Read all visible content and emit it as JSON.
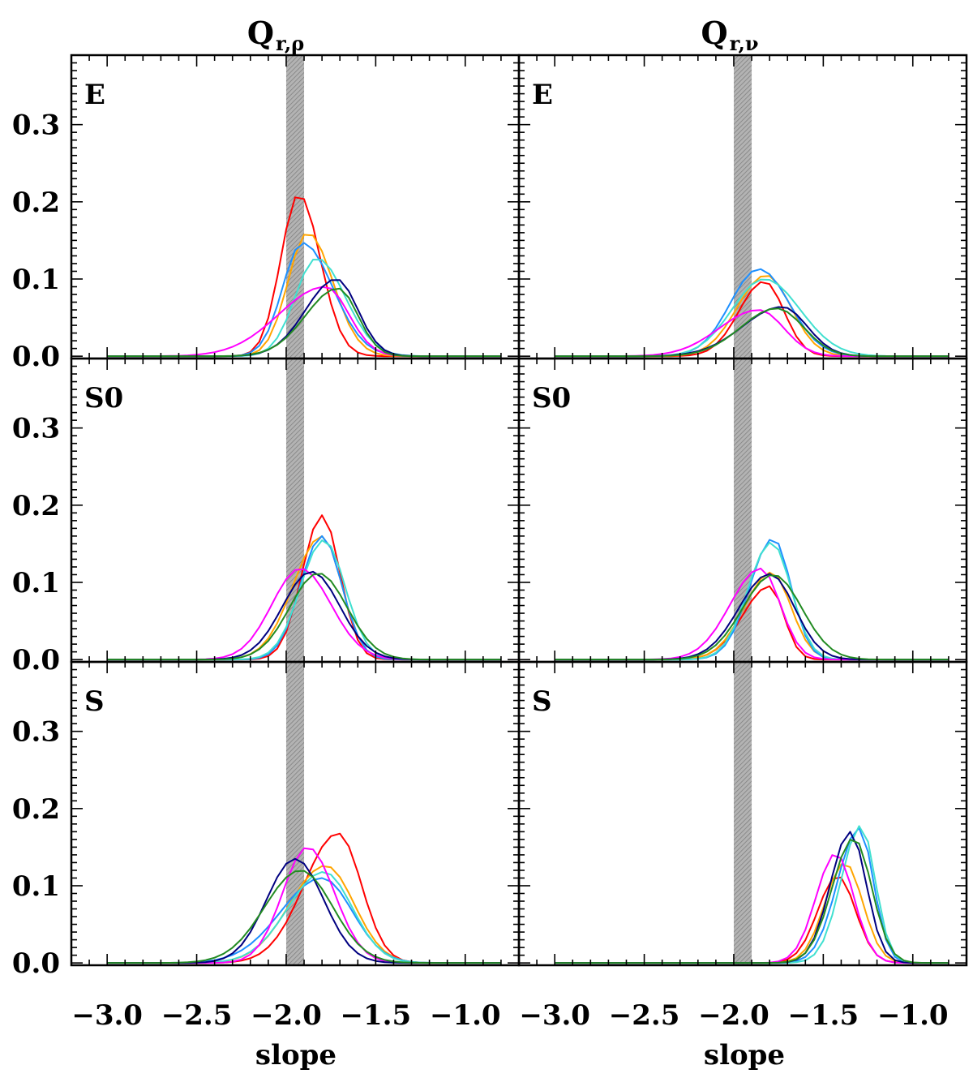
{
  "figure": {
    "columns": [
      {
        "title_main": "Q",
        "title_sub": "r,ρ"
      },
      {
        "title_main": "Q",
        "title_sub": "r,ν"
      }
    ],
    "rows": [
      "E",
      "S0",
      "S"
    ],
    "xlabel": "slope",
    "x_tick_labels": [
      "−3.0",
      "−2.5",
      "−2.0",
      "−1.5",
      "−1.0"
    ],
    "y_tick_labels": [
      "0.0",
      "0.1",
      "0.2",
      "0.3"
    ]
  },
  "chart_data": {
    "type": "line",
    "xlim": [
      -3.2,
      -0.7
    ],
    "ylim": [
      -0.003,
      0.39
    ],
    "x_ticks": [
      -3.0,
      -2.5,
      -2.0,
      -1.5,
      -1.0
    ],
    "y_ticks": [
      0.0,
      0.1,
      0.2,
      0.3
    ],
    "shaded_band": {
      "x": [
        -2.0,
        -1.9
      ],
      "color": "#a6a6a6"
    },
    "colors": {
      "red": "#ff0000",
      "orange": "#ffa500",
      "dodgerblue": "#1e90ff",
      "turquoise": "#40e0d0",
      "magenta": "#ff00ff",
      "navy": "#000080",
      "green": "#228b22"
    },
    "x": [
      -3.0,
      -2.95,
      -2.9,
      -2.85,
      -2.8,
      -2.75,
      -2.7,
      -2.65,
      -2.6,
      -2.55,
      -2.5,
      -2.45,
      -2.4,
      -2.35,
      -2.3,
      -2.25,
      -2.2,
      -2.15,
      -2.1,
      -2.05,
      -2.0,
      -1.95,
      -1.9,
      -1.85,
      -1.8,
      -1.75,
      -1.7,
      -1.65,
      -1.6,
      -1.55,
      -1.5,
      -1.45,
      -1.4,
      -1.35,
      -1.3,
      -1.25,
      -1.2,
      -1.15,
      -1.1,
      -1.05,
      -1.0,
      -0.95,
      -0.9,
      -0.85,
      -0.8
    ],
    "panels": [
      {
        "row": "E",
        "column": "Q_r,rho",
        "series": [
          {
            "color": "#ff0000",
            "peak_x": -1.93,
            "peak_y": 0.21,
            "width_left": 0.1,
            "width_right": 0.12
          },
          {
            "color": "#ffa500",
            "peak_x": -1.88,
            "peak_y": 0.16,
            "width_left": 0.11,
            "width_right": 0.14
          },
          {
            "color": "#1e90ff",
            "peak_x": -1.91,
            "peak_y": 0.147,
            "width_left": 0.11,
            "width_right": 0.17
          },
          {
            "color": "#40e0d0",
            "peak_x": -1.83,
            "peak_y": 0.127,
            "width_left": 0.12,
            "width_right": 0.16
          },
          {
            "color": "#ff00ff",
            "peak_x": -1.78,
            "peak_y": 0.09,
            "width_left": 0.26,
            "width_right": 0.13
          },
          {
            "color": "#000080",
            "peak_x": -1.72,
            "peak_y": 0.1,
            "width_left": 0.17,
            "width_right": 0.12
          },
          {
            "color": "#228b22",
            "peak_x": -1.71,
            "peak_y": 0.088,
            "width_left": 0.18,
            "width_right": 0.11
          }
        ]
      },
      {
        "row": "E",
        "column": "Q_r,nu",
        "series": [
          {
            "color": "#ff0000",
            "peak_x": -1.83,
            "peak_y": 0.097,
            "width_left": 0.14,
            "width_right": 0.11
          },
          {
            "color": "#ffa500",
            "peak_x": -1.82,
            "peak_y": 0.105,
            "width_left": 0.16,
            "width_right": 0.14
          },
          {
            "color": "#1e90ff",
            "peak_x": -1.86,
            "peak_y": 0.113,
            "width_left": 0.16,
            "width_right": 0.17
          },
          {
            "color": "#40e0d0",
            "peak_x": -1.83,
            "peak_y": 0.1,
            "width_left": 0.18,
            "width_right": 0.2
          },
          {
            "color": "#ff00ff",
            "peak_x": -1.86,
            "peak_y": 0.06,
            "width_left": 0.22,
            "width_right": 0.14
          },
          {
            "color": "#000080",
            "peak_x": -1.73,
            "peak_y": 0.064,
            "width_left": 0.22,
            "width_right": 0.14
          },
          {
            "color": "#228b22",
            "peak_x": -1.76,
            "peak_y": 0.062,
            "width_left": 0.2,
            "width_right": 0.15
          }
        ]
      },
      {
        "row": "S0",
        "column": "Q_r,rho",
        "series": [
          {
            "color": "#ff0000",
            "peak_x": -1.8,
            "peak_y": 0.187,
            "width_left": 0.11,
            "width_right": 0.1
          },
          {
            "color": "#ffa500",
            "peak_x": -1.8,
            "peak_y": 0.16,
            "width_left": 0.16,
            "width_right": 0.11
          },
          {
            "color": "#1e90ff",
            "peak_x": -1.8,
            "peak_y": 0.16,
            "width_left": 0.12,
            "width_right": 0.11
          },
          {
            "color": "#40e0d0",
            "peak_x": -1.79,
            "peak_y": 0.155,
            "width_left": 0.13,
            "width_right": 0.12
          },
          {
            "color": "#ff00ff",
            "peak_x": -1.92,
            "peak_y": 0.118,
            "width_left": 0.16,
            "width_right": 0.17
          },
          {
            "color": "#000080",
            "peak_x": -1.86,
            "peak_y": 0.114,
            "width_left": 0.16,
            "width_right": 0.16
          },
          {
            "color": "#228b22",
            "peak_x": -1.82,
            "peak_y": 0.112,
            "width_left": 0.16,
            "width_right": 0.16
          }
        ]
      },
      {
        "row": "S0",
        "column": "Q_r,nu",
        "series": [
          {
            "color": "#ff0000",
            "peak_x": -1.8,
            "peak_y": 0.095,
            "width_left": 0.15,
            "width_right": 0.08
          },
          {
            "color": "#ffa500",
            "peak_x": -1.79,
            "peak_y": 0.113,
            "width_left": 0.15,
            "width_right": 0.11
          },
          {
            "color": "#1e90ff",
            "peak_x": -1.78,
            "peak_y": 0.157,
            "width_left": 0.13,
            "width_right": 0.1
          },
          {
            "color": "#40e0d0",
            "peak_x": -1.79,
            "peak_y": 0.152,
            "width_left": 0.13,
            "width_right": 0.11
          },
          {
            "color": "#ff00ff",
            "peak_x": -1.85,
            "peak_y": 0.118,
            "width_left": 0.17,
            "width_right": 0.11
          },
          {
            "color": "#000080",
            "peak_x": -1.8,
            "peak_y": 0.111,
            "width_left": 0.17,
            "width_right": 0.14
          },
          {
            "color": "#228b22",
            "peak_x": -1.78,
            "peak_y": 0.11,
            "width_left": 0.17,
            "width_right": 0.16
          }
        ]
      },
      {
        "row": "S",
        "column": "Q_r,rho",
        "series": [
          {
            "color": "#ff0000",
            "peak_x": -1.71,
            "peak_y": 0.168,
            "width_left": 0.19,
            "width_right": 0.13
          },
          {
            "color": "#ffa500",
            "peak_x": -1.78,
            "peak_y": 0.126,
            "width_left": 0.2,
            "width_right": 0.16
          },
          {
            "color": "#1e90ff",
            "peak_x": -1.8,
            "peak_y": 0.11,
            "width_left": 0.23,
            "width_right": 0.17
          },
          {
            "color": "#40e0d0",
            "peak_x": -1.79,
            "peak_y": 0.118,
            "width_left": 0.2,
            "width_right": 0.16
          },
          {
            "color": "#ff00ff",
            "peak_x": -1.88,
            "peak_y": 0.15,
            "width_left": 0.14,
            "width_right": 0.15
          },
          {
            "color": "#000080",
            "peak_x": -1.95,
            "peak_y": 0.135,
            "width_left": 0.16,
            "width_right": 0.16
          },
          {
            "color": "#228b22",
            "peak_x": -1.92,
            "peak_y": 0.12,
            "width_left": 0.2,
            "width_right": 0.18
          }
        ]
      },
      {
        "row": "S",
        "column": "Q_r,nu",
        "series": [
          {
            "color": "#ff0000",
            "peak_x": -1.42,
            "peak_y": 0.113,
            "width_left": 0.11,
            "width_right": 0.1
          },
          {
            "color": "#ffa500",
            "peak_x": -1.38,
            "peak_y": 0.13,
            "width_left": 0.11,
            "width_right": 0.1
          },
          {
            "color": "#1e90ff",
            "peak_x": -1.3,
            "peak_y": 0.175,
            "width_left": 0.12,
            "width_right": 0.08
          },
          {
            "color": "#40e0d0",
            "peak_x": -1.29,
            "peak_y": 0.178,
            "width_left": 0.11,
            "width_right": 0.08
          },
          {
            "color": "#ff00ff",
            "peak_x": -1.43,
            "peak_y": 0.142,
            "width_left": 0.11,
            "width_right": 0.1
          },
          {
            "color": "#000080",
            "peak_x": -1.35,
            "peak_y": 0.17,
            "width_left": 0.11,
            "width_right": 0.09
          },
          {
            "color": "#228b22",
            "peak_x": -1.33,
            "peak_y": 0.162,
            "width_left": 0.12,
            "width_right": 0.1
          }
        ]
      }
    ]
  }
}
